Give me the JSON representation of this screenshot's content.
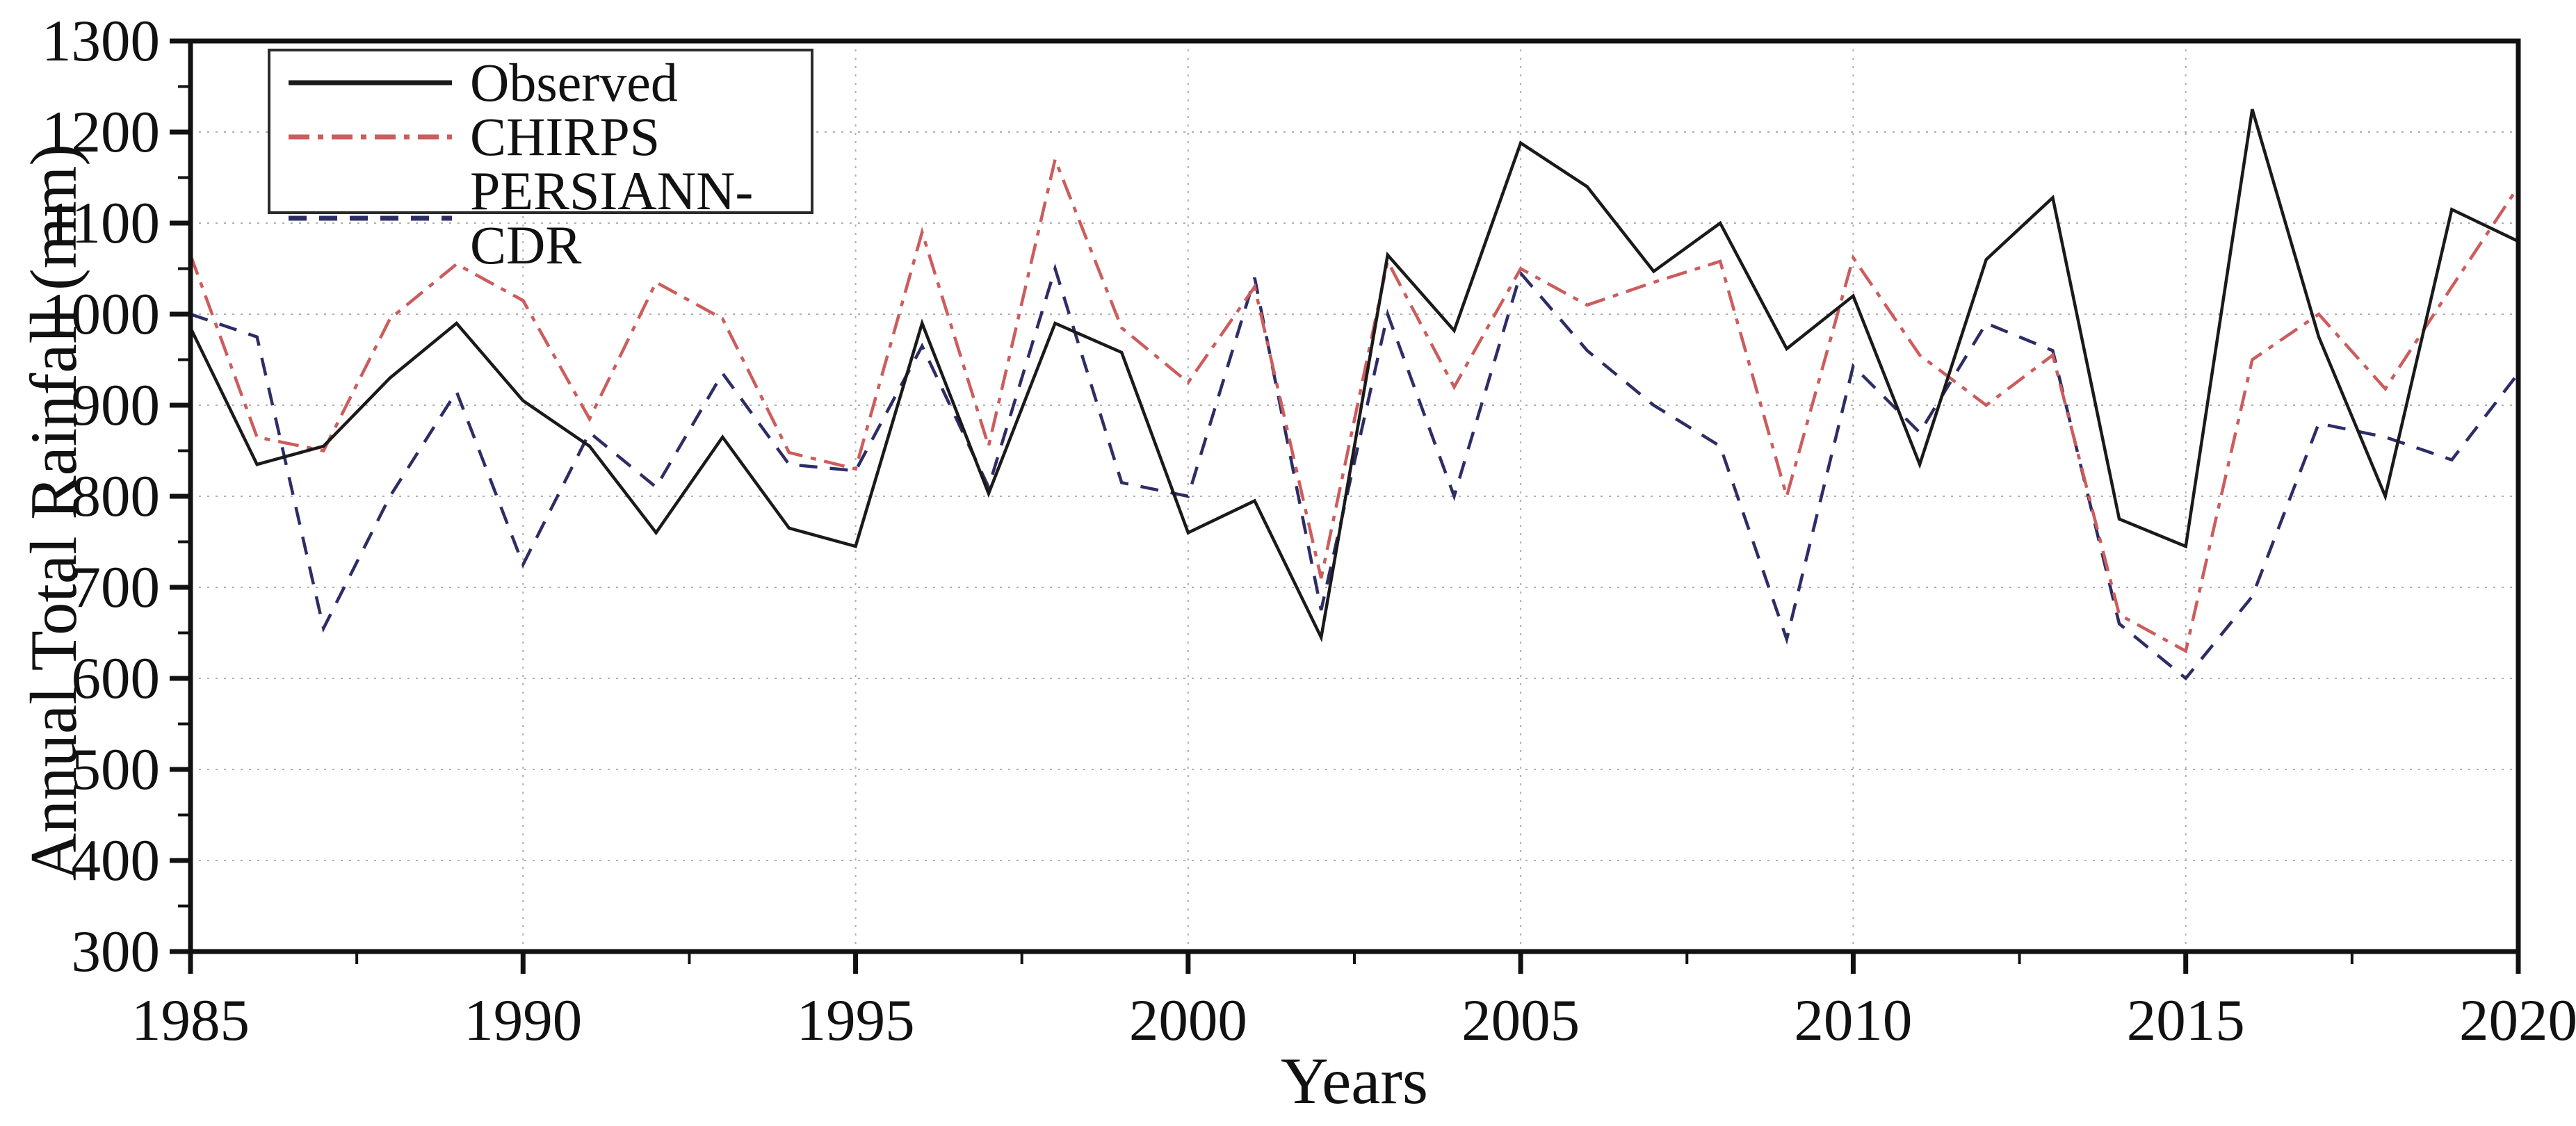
{
  "figure": {
    "background": "#ffffff",
    "frame_color": "#111111"
  },
  "chart_data": {
    "type": "line",
    "title": "",
    "xlabel": "Years",
    "ylabel": "Annual Total Rainfall (mm)",
    "x": [
      1985,
      1986,
      1987,
      1988,
      1989,
      1990,
      1991,
      1992,
      1993,
      1994,
      1995,
      1996,
      1997,
      1998,
      1999,
      2000,
      2001,
      2002,
      2003,
      2004,
      2005,
      2006,
      2007,
      2008,
      2009,
      2010,
      2011,
      2012,
      2013,
      2014,
      2015,
      2016,
      2017,
      2018,
      2019,
      2020
    ],
    "series": [
      {
        "name": "Observed",
        "color": "#1a1a1a",
        "line_style": "solid",
        "values": [
          985,
          835,
          855,
          930,
          990,
          905,
          855,
          760,
          865,
          765,
          745,
          990,
          803,
          990,
          958,
          760,
          795,
          645,
          1065,
          982,
          1188,
          1140,
          1047,
          1100,
          962,
          1020,
          835,
          1060,
          1128,
          775,
          745,
          1225,
          975,
          800,
          1115,
          1080
        ]
      },
      {
        "name": "CHIRPS",
        "color": "#cd5c5c",
        "line_style": "dash-dot",
        "values": [
          1065,
          865,
          850,
          995,
          1055,
          1015,
          885,
          1035,
          995,
          848,
          830,
          1090,
          855,
          1170,
          985,
          925,
          1030,
          710,
          1058,
          920,
          1050,
          1010,
          1035,
          1058,
          800,
          1062,
          955,
          900,
          955,
          670,
          630,
          950,
          1000,
          918,
          1030,
          1140
        ]
      },
      {
        "name": "PERSIANN-CDR",
        "color": "#2d2d66",
        "line_style": "dashed",
        "values": [
          1000,
          975,
          655,
          800,
          915,
          725,
          870,
          810,
          935,
          835,
          828,
          965,
          810,
          1050,
          815,
          800,
          1040,
          675,
          1000,
          800,
          1045,
          960,
          900,
          855,
          643,
          943,
          870,
          990,
          960,
          660,
          600,
          690,
          880,
          865,
          840,
          935
        ]
      }
    ],
    "x_axis": {
      "range": [
        1985,
        2020
      ],
      "ticks": [
        1985,
        1990,
        1995,
        2000,
        2005,
        2010,
        2015,
        2020
      ],
      "minor_tick_step": 2.5
    },
    "y_axis": {
      "range": [
        300,
        1300
      ],
      "ticks": [
        300,
        400,
        500,
        600,
        700,
        800,
        900,
        1000,
        1100,
        1200,
        1300
      ],
      "minor_tick_step": 50
    },
    "grid": {
      "show": true,
      "style": "dotted",
      "color": "#b0b0b0"
    },
    "legend_position": "top-left"
  }
}
